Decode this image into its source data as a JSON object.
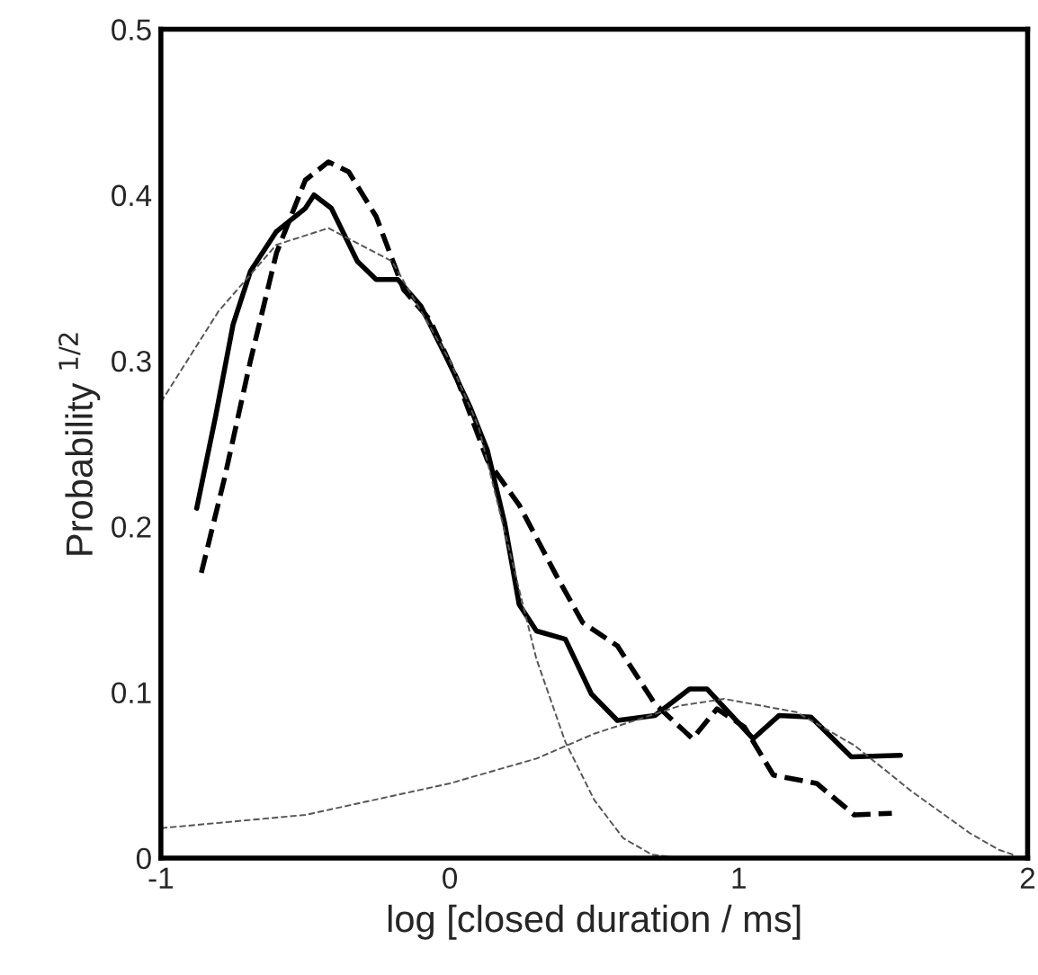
{
  "chart_data": {
    "type": "line",
    "xlabel": "log [closed duration / ms]",
    "ylabel": "Probability $^{1/2}$",
    "xlim": [
      -1,
      2
    ],
    "xticks": [
      -1,
      0,
      1,
      2
    ],
    "ylim": [
      0,
      0.5
    ],
    "yticks": [
      0,
      0.1,
      0.2,
      0.3,
      0.4,
      0.5
    ],
    "series": [
      {
        "color": "#000000",
        "line_style": "solid",
        "x": [
          -0.876,
          -0.81,
          -0.75,
          -0.69,
          -0.6,
          -0.5,
          -0.47,
          -0.41,
          -0.32,
          -0.255,
          -0.18,
          -0.1,
          -0.006,
          0.068,
          0.13,
          0.19,
          0.24,
          0.3,
          0.4,
          0.49,
          0.58,
          0.71,
          0.83,
          0.89,
          1.05,
          1.14,
          1.25,
          1.39,
          1.56
        ],
        "values": [
          0.211,
          0.267,
          0.322,
          0.354,
          0.378,
          0.392,
          0.4,
          0.392,
          0.36,
          0.349,
          0.349,
          0.333,
          0.3,
          0.273,
          0.246,
          0.202,
          0.153,
          0.137,
          0.132,
          0.099,
          0.083,
          0.086,
          0.102,
          0.102,
          0.072,
          0.086,
          0.085,
          0.061,
          0.062
        ]
      },
      {
        "color": "#000000",
        "line_style": "dashed",
        "x": [
          -0.86,
          -0.78,
          -0.69,
          -0.6,
          -0.5,
          -0.42,
          -0.35,
          -0.255,
          -0.16,
          -0.07,
          0.025,
          0.13,
          0.24,
          0.37,
          0.46,
          0.58,
          0.71,
          0.84,
          0.925,
          1.02,
          1.12,
          1.27,
          1.4,
          1.53
        ],
        "values": [
          0.172,
          0.229,
          0.3,
          0.365,
          0.409,
          0.42,
          0.414,
          0.387,
          0.343,
          0.325,
          0.289,
          0.24,
          0.213,
          0.17,
          0.142,
          0.128,
          0.093,
          0.072,
          0.09,
          0.079,
          0.05,
          0.045,
          0.026,
          0.027
        ]
      },
      {
        "color": "#555555",
        "line_style": "dashed",
        "x": [
          -1,
          -0.8,
          -0.6,
          -0.42,
          -0.2,
          0,
          0.1,
          0.2,
          0.3,
          0.4,
          0.5,
          0.6,
          0.7,
          0.8,
          0.9
        ],
        "values": [
          0.275,
          0.33,
          0.37,
          0.38,
          0.36,
          0.3,
          0.26,
          0.19,
          0.12,
          0.07,
          0.035,
          0.012,
          0.002,
          0,
          0
        ]
      },
      {
        "color": "#555555",
        "line_style": "dashed",
        "x": [
          -1,
          -0.5,
          0,
          0.3,
          0.5,
          0.8,
          0.95,
          1.2,
          1.4,
          1.6,
          1.8,
          1.9,
          1.95
        ],
        "values": [
          0.018,
          0.026,
          0.045,
          0.06,
          0.075,
          0.092,
          0.096,
          0.088,
          0.068,
          0.04,
          0.015,
          0.005,
          0.002
        ]
      }
    ]
  }
}
